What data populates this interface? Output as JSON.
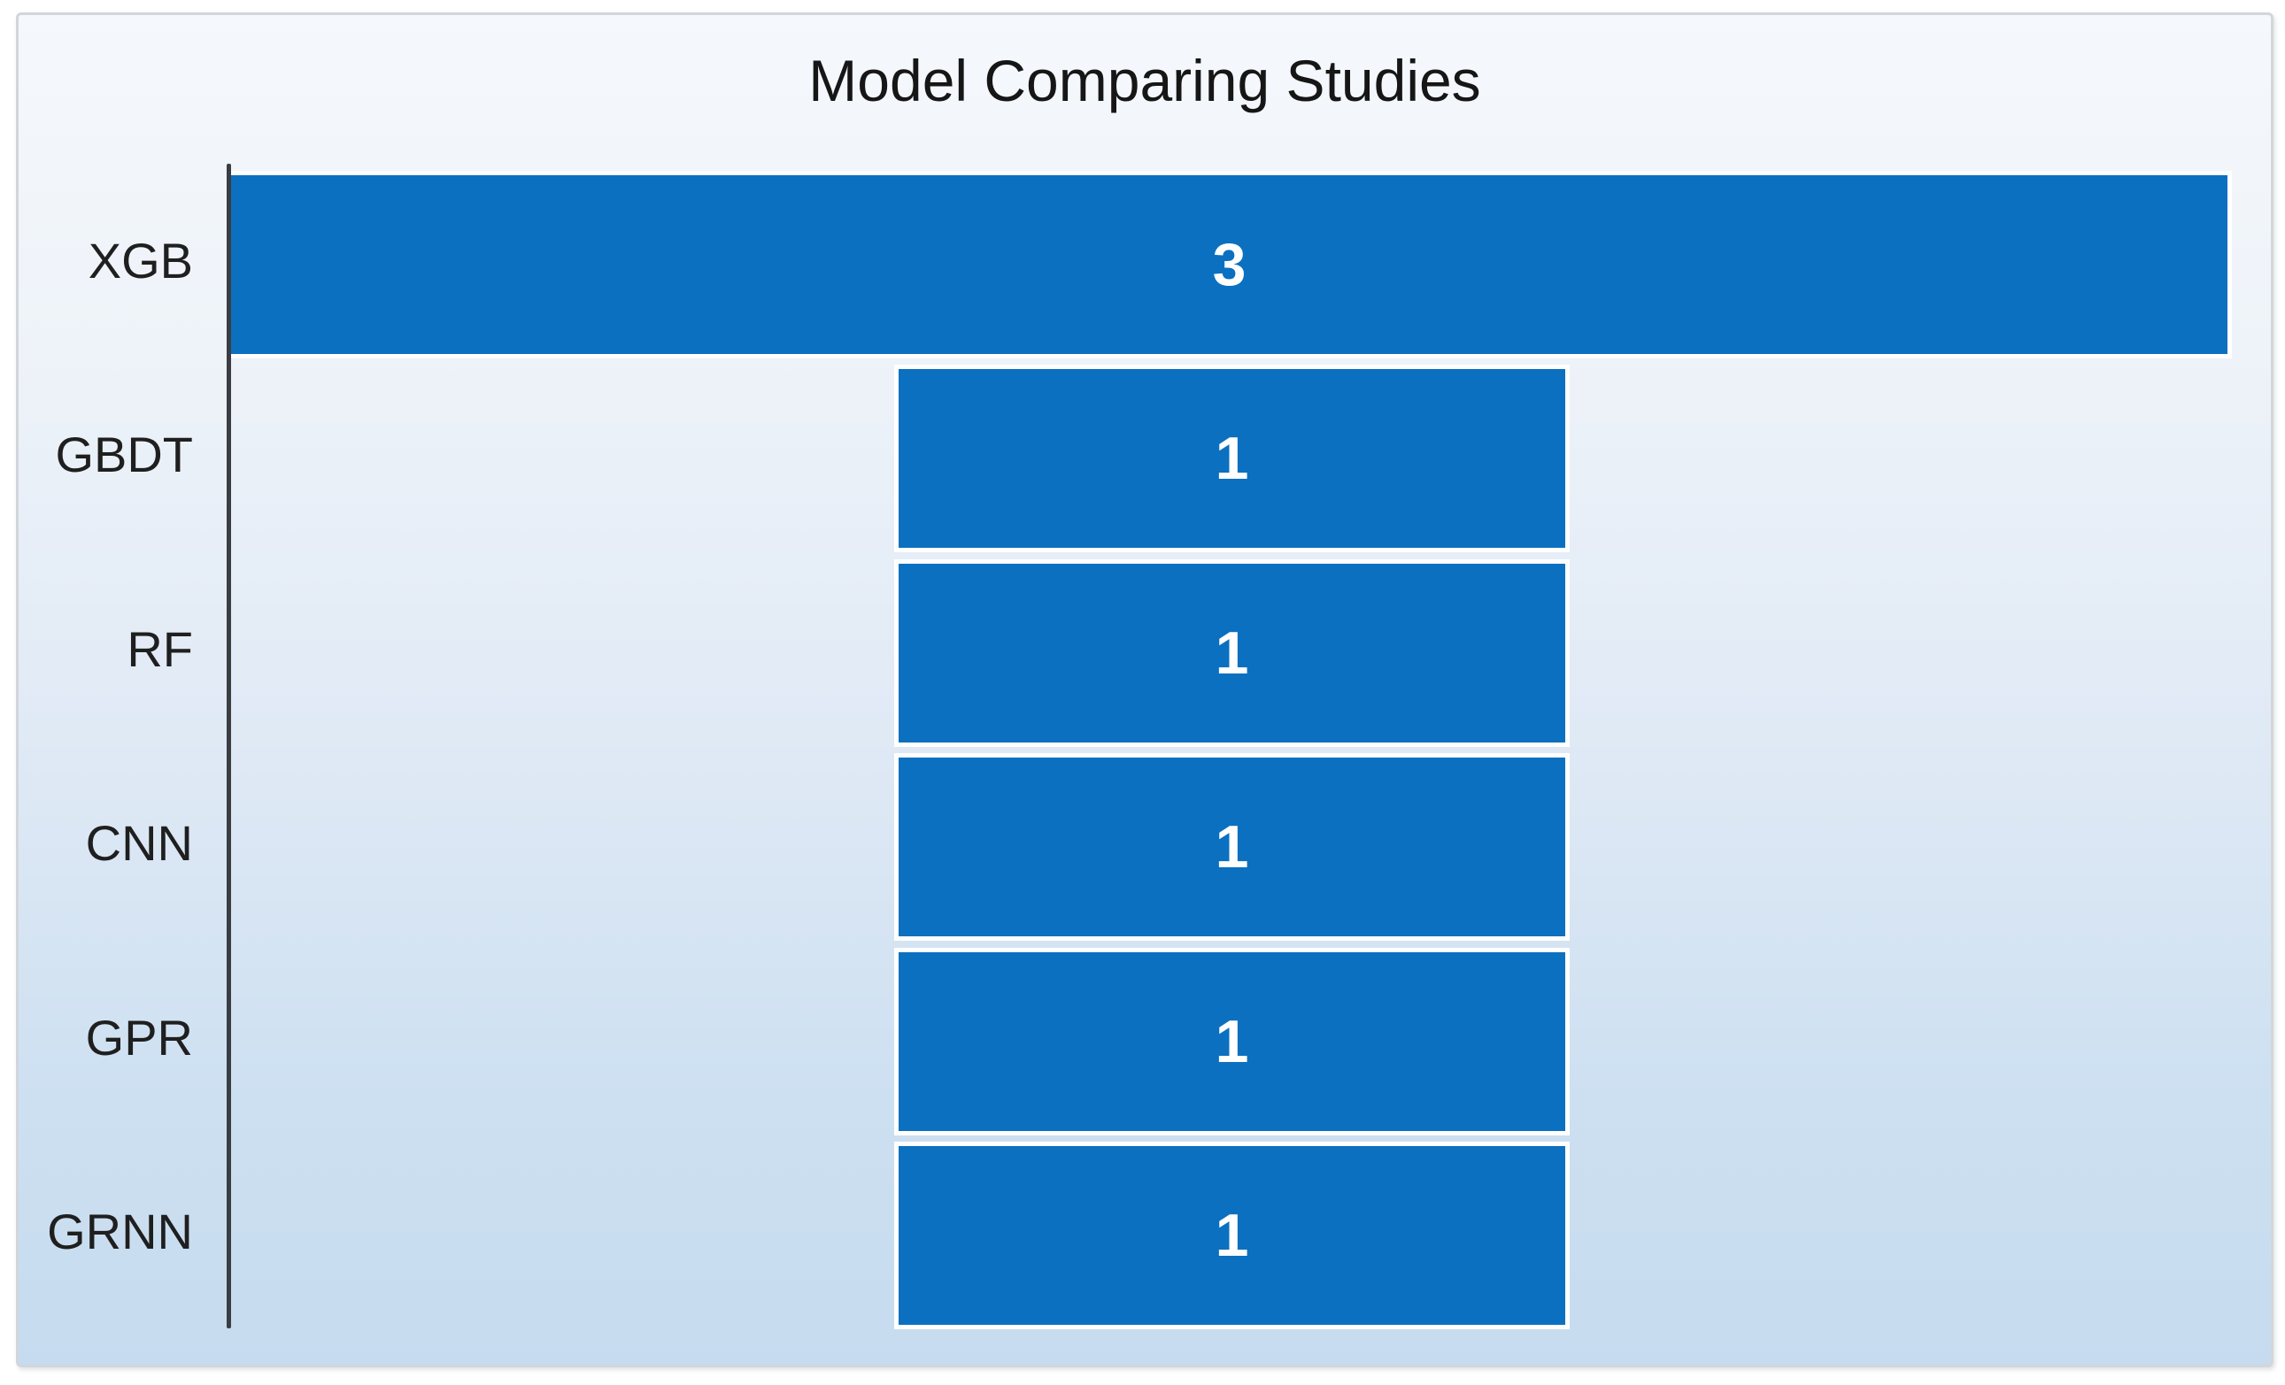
{
  "chart_data": {
    "type": "bar",
    "subtype": "funnel-centered",
    "orientation": "horizontal",
    "title": "Model Comparing Studies",
    "categories": [
      "XGB",
      "GBDT",
      "RF",
      "CNN",
      "GPR",
      "GRNN"
    ],
    "values": [
      3,
      1,
      1,
      1,
      1,
      1
    ],
    "series": [
      {
        "name": "Studies",
        "values": [
          3,
          1,
          1,
          1,
          1,
          1
        ]
      }
    ],
    "xlim": [
      0,
      3
    ],
    "value_labels_shown": true,
    "grid": false,
    "legend_position": "none",
    "colors": {
      "bar_fill": "#0b70c0",
      "bar_outline": "#ffffff",
      "value_label": "#ffffff",
      "category_label": "#1f1f1f",
      "title": "#161616",
      "axis_line": "#3a3e42",
      "background_gradient_top": "#f5f8fc",
      "background_gradient_bottom": "#c6dbef",
      "frame_border": "#d2d6db"
    }
  }
}
